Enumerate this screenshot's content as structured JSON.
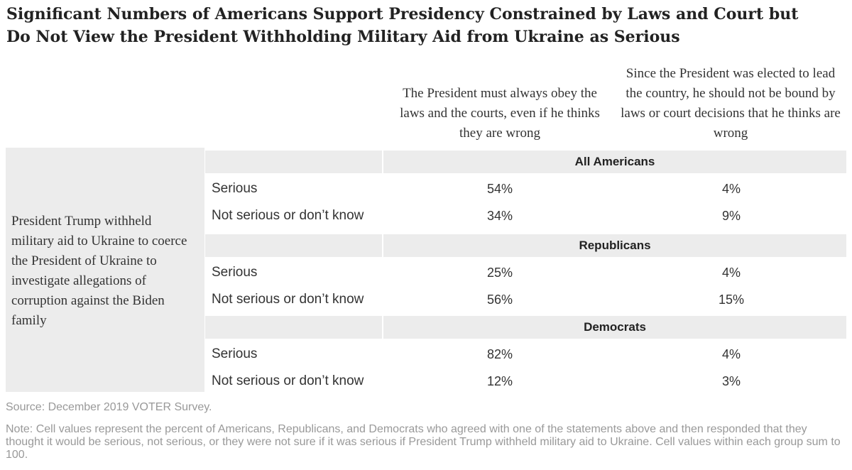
{
  "title_line1": "Significant Numbers of Americans Support Presidency Constrained by Laws and Court but",
  "title_line2": "Do Not View the President Withholding Military Aid from Ukraine as Serious",
  "columns": [
    "The President must always obey the laws and the courts, even if he thinks they are wrong",
    "Since the President was elected to lead the country, he should not be bound by laws or court decisions that he thinks are wrong"
  ],
  "stub_label": "President Trump withheld military aid to Ukraine to coerce the President of Ukraine to investigate allegations of corruption against the Biden family",
  "groups": [
    {
      "name": "All Americans",
      "rows": [
        {
          "label": "Serious",
          "values": [
            "54%",
            "4%"
          ]
        },
        {
          "label": "Not serious or don’t know",
          "values": [
            "34%",
            "9%"
          ]
        }
      ]
    },
    {
      "name": "Republicans",
      "rows": [
        {
          "label": "Serious",
          "values": [
            "25%",
            "4%"
          ]
        },
        {
          "label": "Not serious or don’t know",
          "values": [
            "56%",
            "15%"
          ]
        }
      ]
    },
    {
      "name": "Democrats",
      "rows": [
        {
          "label": "Serious",
          "values": [
            "82%",
            "4%"
          ]
        },
        {
          "label": "Not serious or don’t know",
          "values": [
            "12%",
            "3%"
          ]
        }
      ]
    }
  ],
  "source": "Source: December 2019 VOTER Survey.",
  "note": "Note: Cell values represent the percent of Americans, Republicans, and Democrats who agreed with one of the statements above and then responded that they thought it would be serious, not serious, or they were not sure if it was serious if President Trump withheld military aid to Ukraine. Cell values within each group sum to 100.",
  "chart_data": {
    "type": "table",
    "row_question": "President Trump withheld military aid to Ukraine to coerce the President of Ukraine to investigate allegations of corruption against the Biden family",
    "columns": [
      "The President must always obey the laws and the courts, even if he thinks they are wrong",
      "Since the President was elected to lead the country, he should not be bound by laws or court decisions that he thinks are wrong"
    ],
    "groups": [
      {
        "name": "All Americans",
        "rows": [
          {
            "label": "Serious",
            "values": [
              54,
              4
            ]
          },
          {
            "label": "Not serious or don’t know",
            "values": [
              34,
              9
            ]
          }
        ]
      },
      {
        "name": "Republicans",
        "rows": [
          {
            "label": "Serious",
            "values": [
              25,
              4
            ]
          },
          {
            "label": "Not serious or don’t know",
            "values": [
              56,
              15
            ]
          }
        ]
      },
      {
        "name": "Democrats",
        "rows": [
          {
            "label": "Serious",
            "values": [
              82,
              4
            ]
          },
          {
            "label": "Not serious or don’t know",
            "values": [
              12,
              3
            ]
          }
        ]
      }
    ],
    "unit": "%"
  }
}
